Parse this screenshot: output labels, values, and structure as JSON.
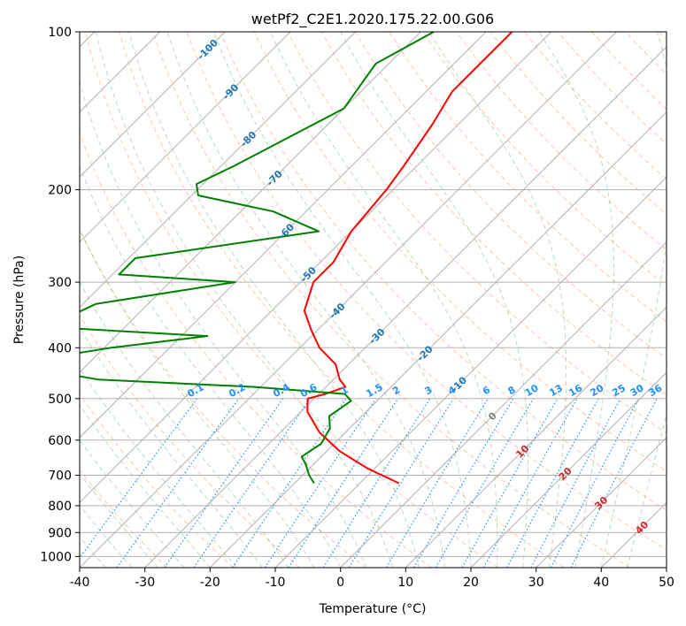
{
  "chart_data": {
    "type": "line",
    "title": "wetPf2_C2E1.2020.175.22.00.G06",
    "xlabel": "Temperature (°C)",
    "ylabel": "Pressure (hPa)",
    "xlim": [
      -40,
      50
    ],
    "ylim": [
      1050,
      100
    ],
    "y_scale": "log",
    "x_ticks": [
      -40,
      -30,
      -20,
      -10,
      0,
      10,
      20,
      30,
      40,
      50
    ],
    "y_ticks": [
      100,
      200,
      300,
      400,
      500,
      600,
      700,
      800,
      900,
      1000
    ],
    "grid": true,
    "skew": 35,
    "colors": {
      "temperature": "#ff0000",
      "dewpoint": "#008000",
      "dry_adiabat": "#ff7f50",
      "moist_adiabat": "#2ca02c",
      "mixing_ratio": "#1e90ff",
      "isotherm_label": "#1f77b4",
      "isotherm_label_warm": "#d62728",
      "grid": "#b0b0b0"
    },
    "series": [
      {
        "name": "temperature",
        "p": [
          100,
          115,
          130,
          150,
          180,
          200,
          240,
          275,
          300,
          340,
          370,
          400,
          430,
          460,
          475,
          490,
          500,
          530,
          580,
          630,
          680,
          725
        ],
        "t": [
          -56,
          -56,
          -56,
          -54,
          -52,
          -51,
          -50,
          -48,
          -48,
          -45,
          -41,
          -37,
          -32,
          -29,
          -27,
          -29,
          -31,
          -29,
          -24,
          -18,
          -11,
          -4
        ]
      },
      {
        "name": "dewpoint",
        "p": [
          100,
          115,
          140,
          180,
          195,
          205,
          220,
          240,
          270,
          290,
          300,
          330,
          365,
          380,
          400,
          430,
          460,
          475,
          490,
          505,
          540,
          570,
          610,
          645,
          670,
          700,
          725
        ],
        "t": [
          -68,
          -72,
          -70,
          -78,
          -81,
          -79,
          -65,
          -55,
          -79,
          -79,
          -60,
          -78,
          -82,
          -56,
          -69,
          -82,
          -66,
          -41,
          -26,
          -24,
          -25,
          -23,
          -22,
          -23,
          -21,
          -19,
          -17
        ]
      }
    ],
    "isotherm_labels": [
      -100,
      -90,
      -80,
      -70,
      -60,
      -50,
      -40,
      -30,
      -20,
      -10,
      0,
      10,
      20,
      30,
      40
    ],
    "mixing_ratio_labels": [
      "0.1",
      "0.2",
      "0.4",
      "0.6",
      "1",
      "1.5",
      "2",
      "3",
      "4",
      "6",
      "8",
      "10",
      "13",
      "16",
      "20",
      "25",
      "30",
      "36"
    ],
    "mixing_ratio_values": [
      0.1,
      0.2,
      0.4,
      0.6,
      1,
      1.5,
      2,
      3,
      4,
      6,
      8,
      10,
      13,
      16,
      20,
      25,
      30,
      36
    ]
  }
}
